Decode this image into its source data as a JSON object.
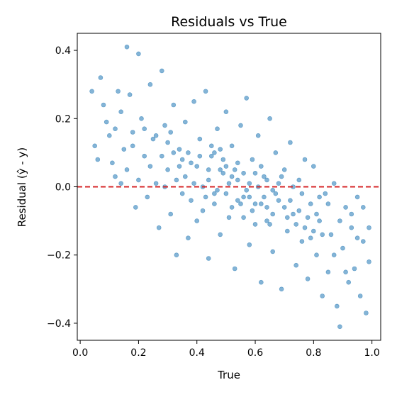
{
  "chart_data": {
    "type": "scatter",
    "title": "Residuals vs True",
    "xlabel": "True",
    "ylabel": "Residual (ŷ - y)",
    "xlim": [
      -0.01,
      1.03
    ],
    "ylim": [
      -0.45,
      0.45
    ],
    "xticks": [
      0.0,
      0.2,
      0.4,
      0.6,
      0.8,
      1.0
    ],
    "xtick_labels": [
      "0.0",
      "0.2",
      "0.4",
      "0.6",
      "0.8",
      "1.0"
    ],
    "yticks": [
      -0.4,
      -0.2,
      0.0,
      0.2,
      0.4
    ],
    "ytick_labels": [
      "−0.4",
      "−0.2",
      "0.0",
      "0.2",
      "0.4"
    ],
    "reference_line": {
      "y": 0.0,
      "style": "dashed",
      "color": "#d62728"
    },
    "grid": false,
    "point_color": "#1f77b4",
    "series": [
      {
        "points": [
          [
            0.04,
            0.28
          ],
          [
            0.05,
            0.12
          ],
          [
            0.06,
            0.08
          ],
          [
            0.07,
            0.32
          ],
          [
            0.08,
            0.24
          ],
          [
            0.09,
            0.19
          ],
          [
            0.1,
            0.15
          ],
          [
            0.11,
            0.07
          ],
          [
            0.12,
            0.03
          ],
          [
            0.13,
            0.28
          ],
          [
            0.14,
            0.22
          ],
          [
            0.15,
            0.11
          ],
          [
            0.16,
            0.41
          ],
          [
            0.17,
            0.27
          ],
          [
            0.18,
            0.16
          ],
          [
            0.19,
            -0.06
          ],
          [
            0.2,
            0.39
          ],
          [
            0.21,
            0.2
          ],
          [
            0.22,
            0.09
          ],
          [
            0.23,
            -0.03
          ],
          [
            0.24,
            0.3
          ],
          [
            0.25,
            0.14
          ],
          [
            0.26,
            0.01
          ],
          [
            0.27,
            -0.12
          ],
          [
            0.28,
            0.34
          ],
          [
            0.29,
            0.18
          ],
          [
            0.3,
            0.05
          ],
          [
            0.31,
            -0.08
          ],
          [
            0.32,
            0.24
          ],
          [
            0.33,
            -0.2
          ],
          [
            0.34,
            0.11
          ],
          [
            0.35,
            -0.02
          ],
          [
            0.36,
            0.19
          ],
          [
            0.37,
            -0.15
          ],
          [
            0.38,
            0.07
          ],
          [
            0.39,
            0.25
          ],
          [
            0.4,
            -0.1
          ],
          [
            0.41,
            0.14
          ],
          [
            0.42,
            0.0
          ],
          [
            0.43,
            0.28
          ],
          [
            0.44,
            -0.21
          ],
          [
            0.45,
            0.09
          ],
          [
            0.46,
            -0.05
          ],
          [
            0.47,
            0.17
          ],
          [
            0.48,
            -0.14
          ],
          [
            0.49,
            0.04
          ],
          [
            0.5,
            0.22
          ],
          [
            0.51,
            -0.09
          ],
          [
            0.52,
            0.12
          ],
          [
            0.53,
            -0.24
          ],
          [
            0.54,
            0.02
          ],
          [
            0.55,
            0.18
          ],
          [
            0.56,
            -0.03
          ],
          [
            0.57,
            0.26
          ],
          [
            0.58,
            -0.17
          ],
          [
            0.59,
            0.08
          ],
          [
            0.6,
            -0.11
          ],
          [
            0.61,
            0.15
          ],
          [
            0.62,
            -0.28
          ],
          [
            0.63,
            0.03
          ],
          [
            0.64,
            -0.06
          ],
          [
            0.65,
            0.2
          ],
          [
            0.66,
            -0.19
          ],
          [
            0.67,
            0.1
          ],
          [
            0.68,
            -0.04
          ],
          [
            0.69,
            -0.3
          ],
          [
            0.7,
            0.05
          ],
          [
            0.71,
            -0.13
          ],
          [
            0.72,
            0.13
          ],
          [
            0.73,
            -0.08
          ],
          [
            0.74,
            -0.23
          ],
          [
            0.75,
            0.02
          ],
          [
            0.76,
            -0.16
          ],
          [
            0.77,
            0.08
          ],
          [
            0.78,
            -0.27
          ],
          [
            0.79,
            -0.05
          ],
          [
            0.8,
            0.06
          ],
          [
            0.81,
            -0.2
          ],
          [
            0.82,
            -0.1
          ],
          [
            0.83,
            -0.32
          ],
          [
            0.84,
            -0.02
          ],
          [
            0.85,
            -0.25
          ],
          [
            0.86,
            -0.14
          ],
          [
            0.87,
            0.01
          ],
          [
            0.88,
            -0.35
          ],
          [
            0.89,
            -0.41
          ],
          [
            0.9,
            -0.18
          ],
          [
            0.91,
            -0.06
          ],
          [
            0.92,
            -0.28
          ],
          [
            0.93,
            -0.12
          ],
          [
            0.94,
            -0.24
          ],
          [
            0.95,
            -0.03
          ],
          [
            0.96,
            -0.32
          ],
          [
            0.97,
            -0.16
          ],
          [
            0.98,
            -0.37
          ],
          [
            0.99,
            -0.22
          ],
          [
            0.36,
            0.03
          ],
          [
            0.38,
            -0.04
          ],
          [
            0.4,
            0.06
          ],
          [
            0.42,
            -0.07
          ],
          [
            0.44,
            0.02
          ],
          [
            0.46,
            0.1
          ],
          [
            0.48,
            0.05
          ],
          [
            0.5,
            -0.02
          ],
          [
            0.52,
            -0.06
          ],
          [
            0.54,
            0.07
          ],
          [
            0.56,
            -0.09
          ],
          [
            0.58,
            0.01
          ],
          [
            0.6,
            0.04
          ],
          [
            0.62,
            -0.05
          ],
          [
            0.64,
            0.02
          ],
          [
            0.66,
            -0.08
          ],
          [
            0.68,
            0.01
          ],
          [
            0.7,
            -0.06
          ],
          [
            0.41,
            0.09
          ],
          [
            0.43,
            -0.03
          ],
          [
            0.45,
            0.12
          ],
          [
            0.47,
            -0.01
          ],
          [
            0.49,
            0.08
          ],
          [
            0.51,
            0.01
          ],
          [
            0.53,
            0.05
          ],
          [
            0.55,
            -0.05
          ],
          [
            0.57,
            -0.01
          ],
          [
            0.59,
            -0.07
          ],
          [
            0.61,
            0.0
          ],
          [
            0.63,
            -0.03
          ],
          [
            0.65,
            -0.11
          ],
          [
            0.67,
            -0.02
          ],
          [
            0.69,
            0.03
          ],
          [
            0.71,
            -0.09
          ],
          [
            0.73,
            0.0
          ],
          [
            0.75,
            -0.07
          ],
          [
            0.34,
            0.06
          ],
          [
            0.32,
            0.1
          ],
          [
            0.3,
            0.13
          ],
          [
            0.28,
            0.09
          ],
          [
            0.26,
            0.15
          ],
          [
            0.24,
            0.06
          ],
          [
            0.22,
            0.17
          ],
          [
            0.2,
            0.02
          ],
          [
            0.18,
            0.12
          ],
          [
            0.16,
            0.05
          ],
          [
            0.14,
            0.01
          ],
          [
            0.12,
            0.17
          ],
          [
            0.77,
            -0.12
          ],
          [
            0.79,
            -0.15
          ],
          [
            0.81,
            -0.08
          ],
          [
            0.83,
            -0.14
          ],
          [
            0.85,
            -0.05
          ],
          [
            0.87,
            -0.2
          ],
          [
            0.89,
            -0.1
          ],
          [
            0.91,
            -0.25
          ],
          [
            0.93,
            -0.08
          ],
          [
            0.95,
            -0.15
          ],
          [
            0.97,
            -0.06
          ],
          [
            0.99,
            -0.12
          ],
          [
            0.44,
            0.05
          ],
          [
            0.46,
            -0.02
          ],
          [
            0.48,
            0.11
          ],
          [
            0.5,
            0.06
          ],
          [
            0.52,
            0.03
          ],
          [
            0.54,
            -0.04
          ],
          [
            0.56,
            0.04
          ],
          [
            0.58,
            -0.03
          ],
          [
            0.6,
            -0.05
          ],
          [
            0.62,
            0.06
          ],
          [
            0.64,
            -0.1
          ],
          [
            0.66,
            -0.01
          ],
          [
            0.39,
            0.01
          ],
          [
            0.37,
            0.1
          ],
          [
            0.35,
            0.08
          ],
          [
            0.33,
            0.02
          ],
          [
            0.31,
            0.16
          ],
          [
            0.29,
            0.0
          ],
          [
            0.72,
            -0.04
          ],
          [
            0.74,
            -0.11
          ],
          [
            0.76,
            -0.02
          ],
          [
            0.78,
            -0.09
          ],
          [
            0.8,
            -0.13
          ],
          [
            0.82,
            -0.03
          ]
        ]
      }
    ]
  }
}
